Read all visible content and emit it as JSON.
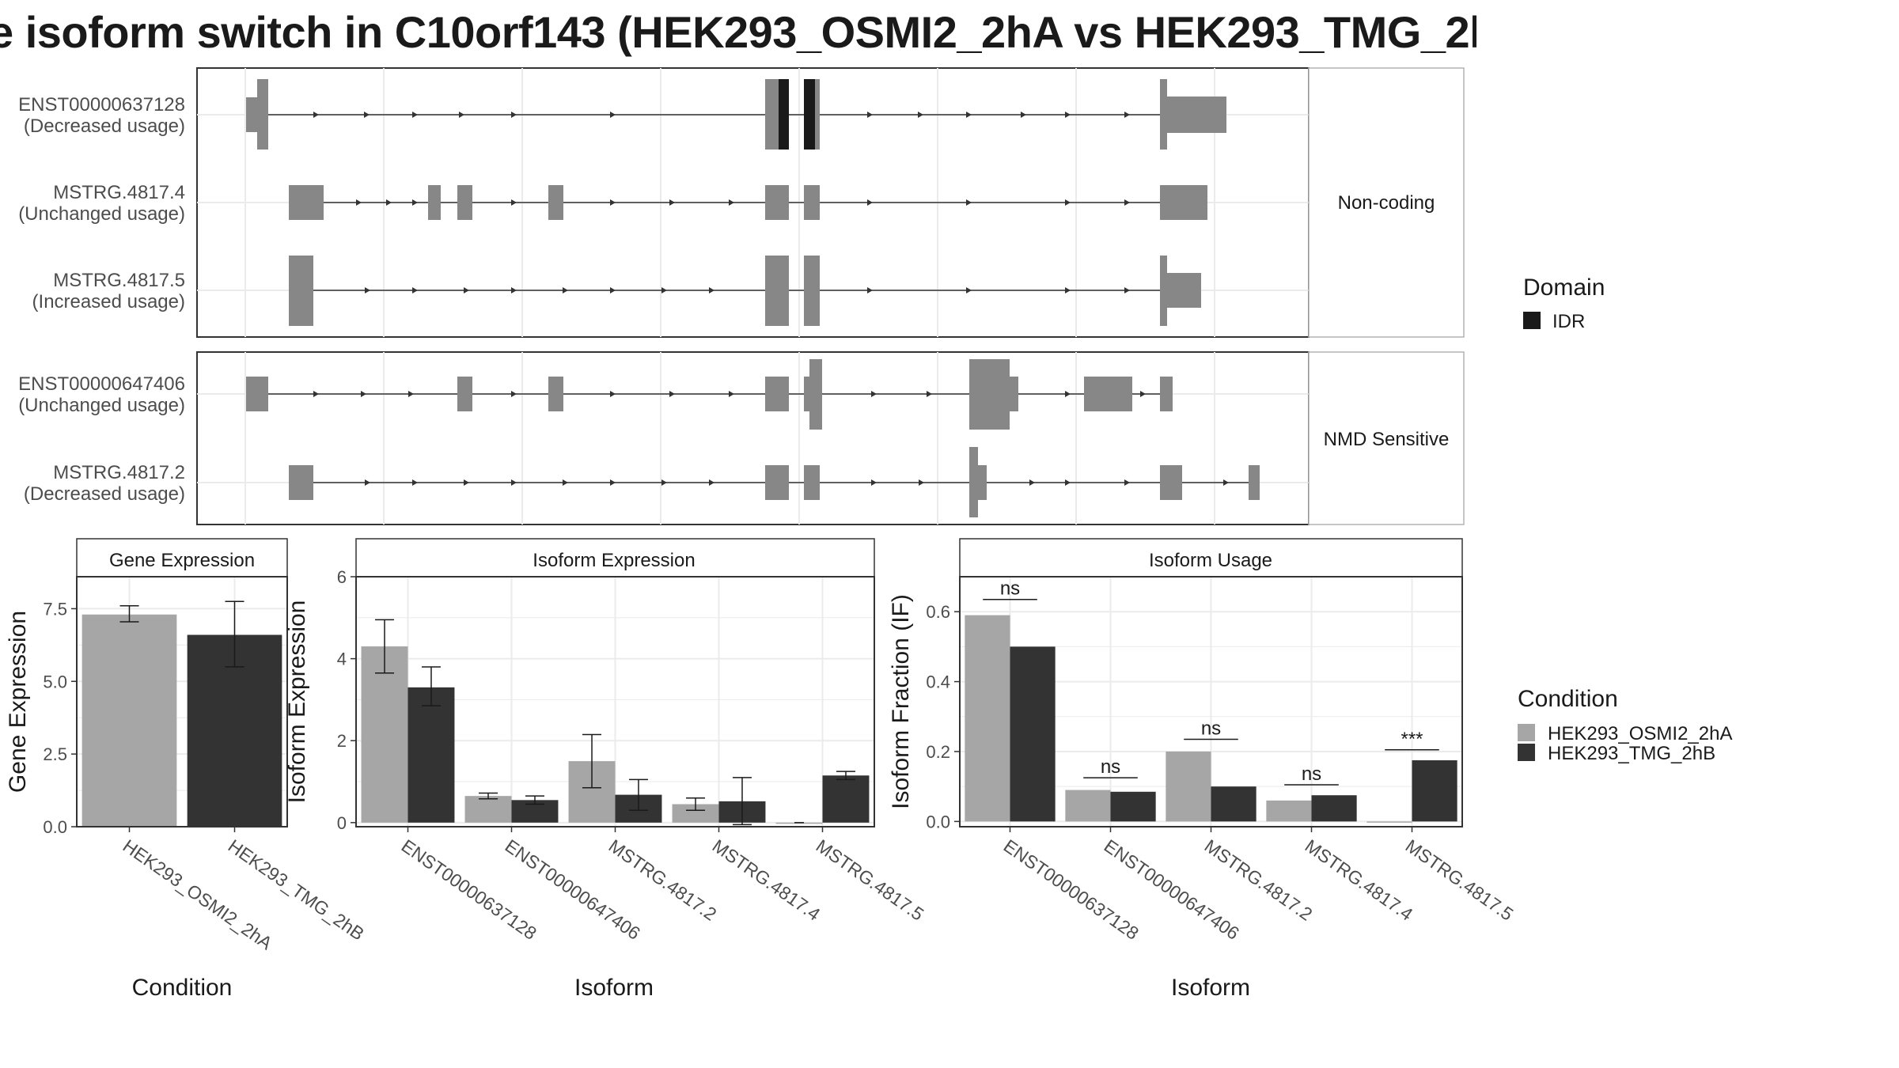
{
  "title": "e isoform switch in C10orf143 (HEK293_OSMI2_2hA vs HEK293_TMG_2h",
  "colors": {
    "exon": "#878787",
    "idr": "#1a1a1a",
    "condA": "#a6a6a6",
    "condB": "#333333"
  },
  "structure": {
    "groups": [
      {
        "label": "Non-coding",
        "isoforms": [
          {
            "name": "ENST00000637128",
            "usage": "(Decreased usage)"
          },
          {
            "name": "MSTRG.4817.4",
            "usage": "(Unchanged usage)"
          },
          {
            "name": "MSTRG.4817.5",
            "usage": "(Increased usage)"
          }
        ]
      },
      {
        "label": "NMD Sensitive",
        "isoforms": [
          {
            "name": "ENST00000647406",
            "usage": "(Unchanged usage)"
          },
          {
            "name": "MSTRG.4817.2",
            "usage": "(Decreased usage)"
          }
        ]
      }
    ]
  },
  "legends": {
    "domain": {
      "title": "Domain",
      "items": [
        {
          "label": "IDR",
          "color": "#1a1a1a"
        }
      ]
    },
    "condition": {
      "title": "Condition",
      "items": [
        {
          "label": "HEK293_OSMI2_2hA",
          "color": "#a6a6a6"
        },
        {
          "label": "HEK293_TMG_2hB",
          "color": "#333333"
        }
      ]
    }
  },
  "chart_data": [
    {
      "type": "bar",
      "title": "Gene Expression",
      "xlabel": "Condition",
      "ylabel": "Gene Expression",
      "categories": [
        "HEK293_OSMI2_2hA",
        "HEK293_TMG_2hB"
      ],
      "values": [
        7.3,
        6.6
      ],
      "error_low": [
        7.05,
        5.5
      ],
      "error_high": [
        7.6,
        7.75
      ],
      "ylim": [
        0,
        8.6
      ],
      "yticks": [
        0.0,
        2.5,
        5.0,
        7.5
      ],
      "ytick_labels": [
        "0.0",
        "2.5",
        "5.0",
        "7.5"
      ],
      "grid": true
    },
    {
      "type": "bar",
      "title": "Isoform Expression",
      "xlabel": "Isoform",
      "ylabel": "Isoform Expression",
      "categories": [
        "ENST00000637128",
        "ENST00000647406",
        "MSTRG.4817.2",
        "MSTRG.4817.4",
        "MSTRG.4817.5"
      ],
      "series": [
        {
          "name": "HEK293_OSMI2_2hA",
          "values": [
            4.3,
            0.65,
            1.5,
            0.45,
            0.0
          ],
          "error_low": [
            3.65,
            0.58,
            0.85,
            0.3,
            0.0
          ],
          "error_high": [
            4.95,
            0.72,
            2.15,
            0.6,
            0.0
          ]
        },
        {
          "name": "HEK293_TMG_2hB",
          "values": [
            3.3,
            0.55,
            0.68,
            0.52,
            1.15
          ],
          "error_low": [
            2.85,
            0.45,
            0.3,
            -0.05,
            1.05
          ],
          "error_high": [
            3.8,
            0.65,
            1.05,
            1.1,
            1.25
          ]
        }
      ],
      "ylim": [
        -0.1,
        6.0
      ],
      "yticks": [
        0,
        2,
        4,
        6
      ],
      "ytick_labels": [
        "0",
        "2",
        "4",
        "6"
      ],
      "grid": true
    },
    {
      "type": "bar",
      "title": "Isoform Usage",
      "xlabel": "Isoform",
      "ylabel": "Isoform Fraction (IF)",
      "categories": [
        "ENST00000637128",
        "ENST00000647406",
        "MSTRG.4817.2",
        "MSTRG.4817.4",
        "MSTRG.4817.5"
      ],
      "series": [
        {
          "name": "HEK293_OSMI2_2hA",
          "values": [
            0.59,
            0.09,
            0.2,
            0.06,
            0.0
          ]
        },
        {
          "name": "HEK293_TMG_2hB",
          "values": [
            0.5,
            0.085,
            0.1,
            0.075,
            0.175
          ]
        }
      ],
      "significance": [
        "ns",
        "ns",
        "ns",
        "ns",
        "***"
      ],
      "significance_level": [
        0.635,
        0.125,
        0.235,
        0.105,
        0.205
      ],
      "ylim": [
        -0.015,
        0.7
      ],
      "yticks": [
        0.0,
        0.2,
        0.4,
        0.6
      ],
      "ytick_labels": [
        "0.0",
        "0.2",
        "0.4",
        "0.6"
      ],
      "grid": true
    }
  ]
}
